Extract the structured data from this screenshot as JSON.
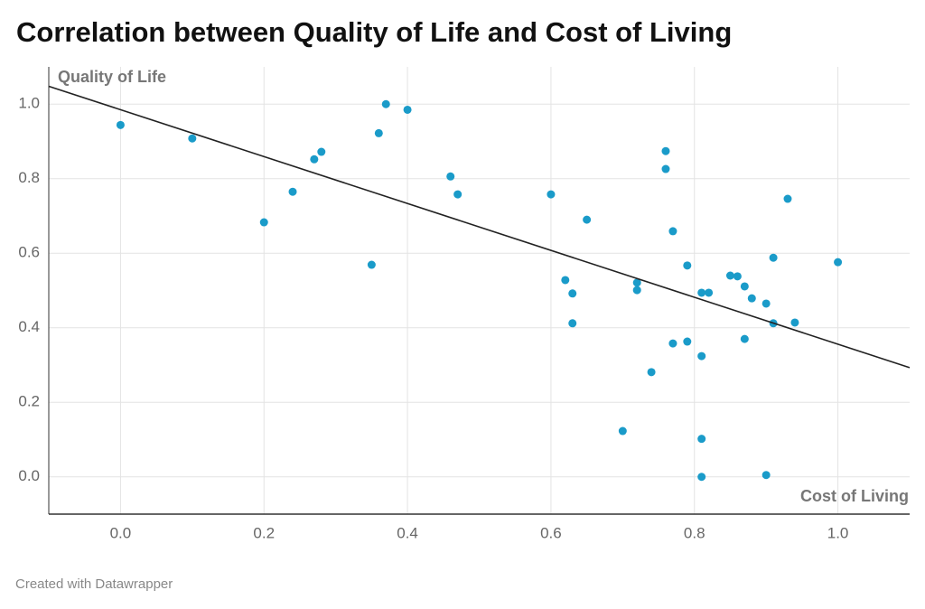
{
  "chart_data": {
    "type": "scatter",
    "title": "Correlation between Quality of Life and Cost of Living",
    "x_label": "Cost of Living",
    "y_label": "Quality of Life",
    "footer": "Created with Datawrapper",
    "color": "#1a9bc9",
    "grid": true,
    "xlim": [
      -0.1,
      1.1
    ],
    "ylim": [
      -0.1,
      1.1
    ],
    "xticks": [
      {
        "value": 0,
        "label": "0.0"
      },
      0.2,
      0.4,
      0.6,
      0.8,
      {
        "value": 1,
        "label": "1.0"
      }
    ],
    "yticks": [
      {
        "value": 0,
        "label": "0.0"
      },
      0.2,
      0.4,
      0.6,
      0.8,
      {
        "value": 1,
        "label": "1.0"
      }
    ],
    "x": [
      0,
      0.1,
      0.2,
      0.24,
      0.27,
      0.28,
      0.35,
      0.36,
      0.37,
      0.4,
      0.46,
      0.47,
      0.6,
      0.62,
      0.63,
      0.63,
      0.65,
      0.7,
      0.72,
      0.72,
      0.74,
      0.76,
      0.76,
      0.77,
      0.77,
      0.79,
      0.79,
      0.81,
      0.81,
      0.81,
      0.81,
      0.82,
      0.85,
      0.86,
      0.87,
      0.87,
      0.88,
      0.9,
      0.9,
      0.91,
      0.91,
      0.93,
      0.94,
      1.0
    ],
    "values": [
      0.944,
      0.908,
      0.683,
      0.765,
      0.852,
      0.872,
      0.569,
      0.922,
      1.0,
      0.985,
      0.806,
      0.758,
      0.758,
      0.528,
      0.492,
      0.412,
      0.69,
      0.123,
      0.521,
      0.501,
      0.281,
      0.874,
      0.826,
      0.659,
      0.358,
      0.567,
      0.363,
      0.494,
      0.324,
      0.102,
      0.0,
      0.494,
      0.54,
      0.538,
      0.511,
      0.37,
      0.479,
      0.465,
      0.005,
      0.588,
      0.412,
      0.746,
      0.414,
      0.576
    ],
    "trend_line": {
      "color": "#222222",
      "x": [
        -0.1,
        1.1
      ],
      "y": [
        1.048,
        0.293
      ]
    }
  }
}
